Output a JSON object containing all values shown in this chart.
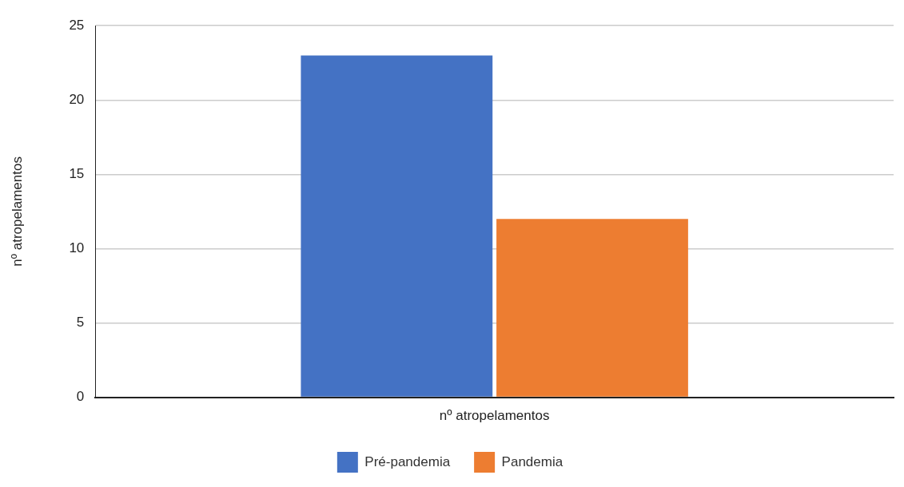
{
  "chart_data": {
    "type": "bar",
    "categories": [
      null
    ],
    "xlabel": "nº atropelamentos",
    "ylabel": "nº atropelamentos",
    "series": [
      {
        "name": "Pré-pandemia",
        "color": "#4472c4",
        "values": [
          23
        ]
      },
      {
        "name": "Pandemia",
        "color": "#ed7d31",
        "values": [
          12
        ]
      }
    ],
    "ylim": [
      0,
      25
    ],
    "yticks": [
      0,
      5,
      10,
      15,
      20,
      25
    ],
    "grid": "y",
    "legend": "bottom"
  }
}
